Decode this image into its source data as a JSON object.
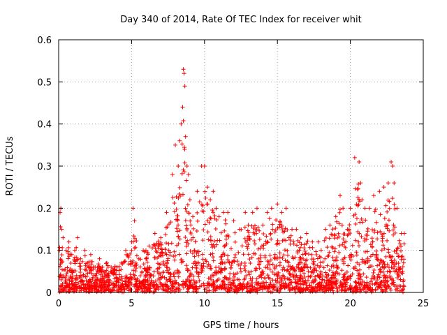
{
  "chart_data": {
    "type": "scatter",
    "title": "Day 340 of 2014, Rate Of TEC Index for receiver whit",
    "xlabel": "GPS time / hours",
    "ylabel": "ROTI / TECUs",
    "xlim": [
      0,
      25
    ],
    "ylim": [
      0,
      0.6
    ],
    "grid": true,
    "x_ticks": [
      0,
      5,
      10,
      15,
      20,
      25
    ],
    "x_tick_labels": [
      "0",
      "5",
      "10",
      "15",
      "20",
      "25"
    ],
    "y_ticks": [
      0,
      0.1,
      0.2,
      0.3,
      0.4,
      0.5,
      0.6
    ],
    "y_tick_labels": [
      "0",
      "0.1",
      "0.2",
      "0.3",
      "0.4",
      "0.5",
      "0.6"
    ],
    "marker": "+",
    "marker_color": "#ff0000",
    "series": [
      {
        "name": "ROTI",
        "x": [
          0.05,
          0.1,
          0.15,
          0.2,
          0.3,
          0.5,
          0.7,
          0.9,
          1.1,
          1.3,
          1.5,
          1.8,
          2.0,
          2.2,
          2.5,
          2.8,
          3.0,
          3.3,
          3.6,
          4.0,
          4.3,
          4.6,
          5.0,
          5.1,
          5.2,
          5.5,
          5.8,
          6.2,
          6.6,
          7.0,
          7.4,
          7.8,
          8.0,
          8.2,
          8.3,
          8.4,
          8.5,
          8.55,
          8.6,
          8.65,
          8.7,
          8.8,
          8.9,
          9.0,
          9.2,
          9.5,
          9.8,
          10.0,
          10.2,
          10.4,
          10.6,
          10.8,
          11.0,
          11.3,
          11.6,
          12.0,
          12.4,
          12.8,
          13.0,
          13.3,
          13.6,
          14.0,
          14.3,
          14.6,
          15.0,
          15.3,
          15.6,
          16.0,
          16.3,
          16.6,
          17.0,
          17.4,
          17.8,
          18.0,
          18.3,
          18.6,
          19.0,
          19.3,
          19.5,
          19.8,
          20.0,
          20.3,
          20.6,
          20.7,
          20.8,
          21.0,
          21.3,
          21.6,
          22.0,
          22.3,
          22.6,
          22.8,
          22.9,
          23.0,
          23.2,
          23.5,
          23.7
        ],
        "y": [
          0.1,
          0.19,
          0.2,
          0.15,
          0.13,
          0.1,
          0.12,
          0.09,
          0.1,
          0.13,
          0.08,
          0.1,
          0.07,
          0.09,
          0.06,
          0.08,
          0.06,
          0.07,
          0.06,
          0.06,
          0.07,
          0.1,
          0.12,
          0.2,
          0.17,
          0.08,
          0.1,
          0.11,
          0.14,
          0.13,
          0.19,
          0.28,
          0.35,
          0.3,
          0.36,
          0.4,
          0.44,
          0.53,
          0.52,
          0.49,
          0.37,
          0.3,
          0.28,
          0.22,
          0.18,
          0.24,
          0.3,
          0.3,
          0.25,
          0.22,
          0.24,
          0.2,
          0.18,
          0.19,
          0.19,
          0.17,
          0.15,
          0.19,
          0.16,
          0.19,
          0.2,
          0.16,
          0.19,
          0.2,
          0.21,
          0.19,
          0.2,
          0.15,
          0.15,
          0.13,
          0.14,
          0.12,
          0.12,
          0.1,
          0.15,
          0.16,
          0.18,
          0.23,
          0.2,
          0.15,
          0.2,
          0.32,
          0.31,
          0.26,
          0.22,
          0.2,
          0.2,
          0.23,
          0.24,
          0.25,
          0.26,
          0.31,
          0.3,
          0.26,
          0.2,
          0.14,
          0.14
        ]
      }
    ]
  }
}
